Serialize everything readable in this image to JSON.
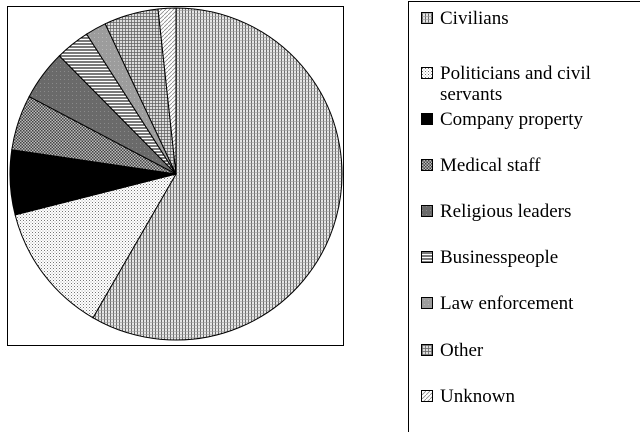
{
  "chart_data": {
    "type": "pie",
    "title": "",
    "categories": [
      "Civilians",
      "Politicians and civil\nservants",
      "Company property",
      "Medical staff",
      "Religious leaders",
      "Businesspeople",
      "Law enforcement",
      "Other",
      "Unknown"
    ],
    "values": [
      57.4,
      12.5,
      6.2,
      5.3,
      4.8,
      3.3,
      2.0,
      5.2,
      1.7
    ],
    "legend": "right",
    "patterns": [
      "vertical-lines",
      "dots",
      "solid",
      "crosshatch",
      "dark-gray",
      "horizontal-lines",
      "light-gray",
      "grid",
      "diagonal"
    ]
  }
}
